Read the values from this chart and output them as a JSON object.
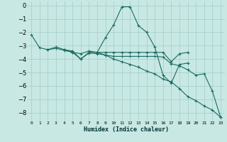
{
  "xlabel": "Humidex (Indice chaleur)",
  "bg_color": "#c8e8e4",
  "grid_color": "#a0cccc",
  "line_color": "#1a6b60",
  "xlim": [
    -0.5,
    23.5
  ],
  "ylim": [
    -8.6,
    0.3
  ],
  "yticks": [
    0,
    -1,
    -2,
    -3,
    -4,
    -5,
    -6,
    -7,
    -8
  ],
  "xticks": [
    0,
    1,
    2,
    3,
    4,
    5,
    6,
    7,
    8,
    9,
    10,
    11,
    12,
    13,
    14,
    15,
    16,
    17,
    18,
    19,
    20,
    21,
    22,
    23
  ],
  "lines": [
    {
      "x": [
        0,
        1,
        2,
        3,
        4,
        5,
        6,
        7,
        8,
        9,
        10,
        11,
        12,
        13,
        14,
        15,
        16,
        17,
        18,
        19
      ],
      "y": [
        -2.2,
        -3.15,
        -3.3,
        -3.1,
        -3.3,
        -3.5,
        -4.0,
        -3.5,
        -3.5,
        -2.4,
        -1.45,
        -0.1,
        -0.1,
        -1.5,
        -2.0,
        -3.1,
        -5.2,
        -5.8,
        -4.4,
        -4.3
      ]
    },
    {
      "x": [
        2,
        3,
        4,
        5,
        6,
        7,
        8,
        9,
        10,
        11,
        12,
        13,
        14,
        15,
        16,
        17,
        18,
        19
      ],
      "y": [
        -3.3,
        -3.2,
        -3.35,
        -3.5,
        -3.6,
        -3.4,
        -3.5,
        -3.5,
        -3.5,
        -3.5,
        -3.5,
        -3.5,
        -3.5,
        -3.5,
        -3.5,
        -4.2,
        -3.6,
        -3.5
      ]
    },
    {
      "x": [
        4,
        5,
        6,
        7,
        8,
        9,
        10,
        11,
        12,
        13,
        14,
        15,
        16,
        17,
        18,
        19,
        20,
        21,
        22,
        23
      ],
      "y": [
        -3.3,
        -3.4,
        -4.0,
        -3.55,
        -3.6,
        -3.7,
        -3.8,
        -3.8,
        -3.8,
        -3.8,
        -3.8,
        -3.8,
        -3.85,
        -4.35,
        -4.5,
        -4.8,
        -5.2,
        -5.1,
        -6.4,
        -8.35
      ]
    },
    {
      "x": [
        8,
        9,
        10,
        11,
        12,
        13,
        14,
        15,
        16,
        17,
        18,
        19,
        20,
        21,
        22,
        23
      ],
      "y": [
        -3.5,
        -3.7,
        -4.0,
        -4.2,
        -4.4,
        -4.6,
        -4.9,
        -5.1,
        -5.5,
        -5.7,
        -6.2,
        -6.8,
        -7.1,
        -7.5,
        -7.8,
        -8.35
      ]
    }
  ]
}
